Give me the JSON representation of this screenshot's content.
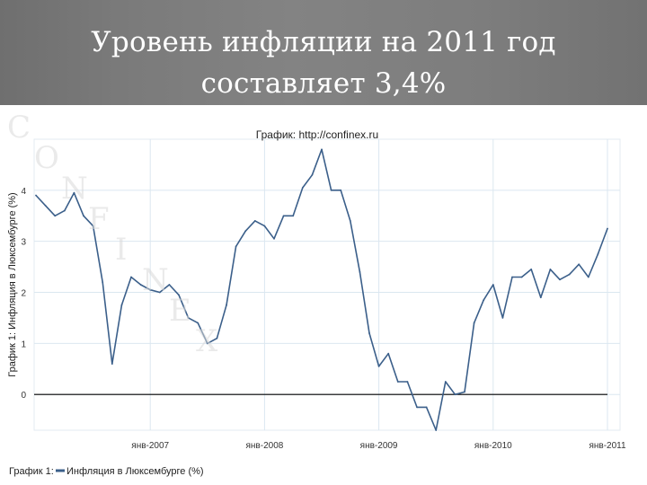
{
  "slide": {
    "title_line1": "Уровень инфляции на 2011 год",
    "title_line2": "составляет 3,4%"
  },
  "colors": {
    "slide_bg": "#7d7d7d",
    "title_text": "#ffffff",
    "series_line": "#3b5f8a",
    "grid": "#dbe7f0",
    "zero_line": "#000000"
  },
  "watermark": {
    "text": "CONFINEX"
  },
  "chart_data": {
    "type": "line",
    "title": "График:  http://confinex.ru",
    "ylabel": "График 1: Инфляция в Люксембурге (%)",
    "legend": "График 1:  Инфляция в Люксембурге (%)",
    "legend_position": "bottom-left",
    "ylim": [
      -0.7,
      5.0
    ],
    "yticks": [
      0,
      1,
      2,
      3,
      4
    ],
    "ytick_labels": [
      "0",
      "1",
      "2",
      "3",
      "4"
    ],
    "xticks": [
      "янв-2007",
      "янв-2008",
      "янв-2009",
      "янв-2010",
      "янв-2011"
    ],
    "grid": true,
    "reference_line": 0,
    "series": [
      {
        "x": [
          "2006-01",
          "2006-02",
          "2006-03",
          "2006-04",
          "2006-05",
          "2006-06",
          "2006-07",
          "2006-08",
          "2006-09",
          "2006-10",
          "2006-11",
          "2006-12",
          "2007-01",
          "2007-02",
          "2007-03",
          "2007-04",
          "2007-05",
          "2007-06",
          "2007-07",
          "2007-08",
          "2007-09",
          "2007-10",
          "2007-11",
          "2007-12",
          "2008-01",
          "2008-02",
          "2008-03",
          "2008-04",
          "2008-05",
          "2008-06",
          "2008-07",
          "2008-08",
          "2008-09",
          "2008-10",
          "2008-11",
          "2008-12",
          "2009-01",
          "2009-02",
          "2009-03",
          "2009-04",
          "2009-05",
          "2009-06",
          "2009-07",
          "2009-08",
          "2009-09",
          "2009-10",
          "2009-11",
          "2009-12",
          "2010-01",
          "2010-02",
          "2010-03",
          "2010-04",
          "2010-05",
          "2010-06",
          "2010-07",
          "2010-08",
          "2010-09",
          "2010-10",
          "2010-11",
          "2010-12",
          "2011-01"
        ],
        "y": [
          3.9,
          3.7,
          3.5,
          3.6,
          3.95,
          3.5,
          3.3,
          2.2,
          0.6,
          1.75,
          2.3,
          2.15,
          2.05,
          2.0,
          2.15,
          1.95,
          1.5,
          1.4,
          1.0,
          1.1,
          1.75,
          2.9,
          3.2,
          3.4,
          3.3,
          3.05,
          3.5,
          3.5,
          4.05,
          4.3,
          4.8,
          4.0,
          4.0,
          3.4,
          2.4,
          1.2,
          0.55,
          0.8,
          0.25,
          0.25,
          -0.25,
          -0.25,
          -0.7,
          0.25,
          0.0,
          0.05,
          1.4,
          1.85,
          2.15,
          1.5,
          2.3,
          2.3,
          2.45,
          1.9,
          2.45,
          2.25,
          2.35,
          2.55,
          2.3,
          2.75,
          3.25
        ]
      }
    ]
  }
}
